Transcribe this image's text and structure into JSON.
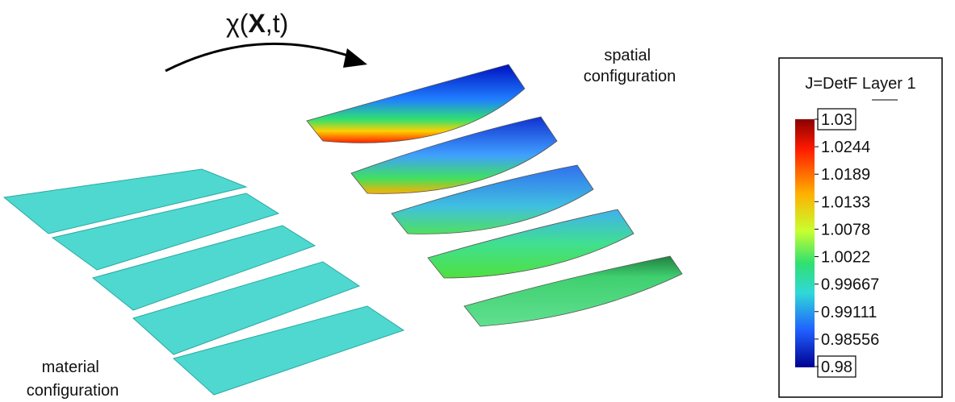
{
  "mapping": {
    "prefix": "χ(",
    "variable": "X",
    "suffix": ",t)"
  },
  "spatial_label": [
    "spatial",
    "configuration"
  ],
  "material_label": [
    "material",
    "configuration"
  ],
  "legend": {
    "title": "J=DetF Layer 1",
    "labels": [
      "1.03",
      "1.0244",
      "1.0189",
      "1.0133",
      "1.0078",
      "1.0022",
      "0.99667",
      "0.99111",
      "0.98556",
      "0.98"
    ]
  }
}
